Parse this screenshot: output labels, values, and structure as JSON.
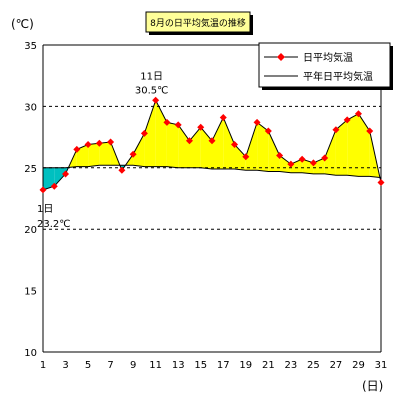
{
  "chart_data": {
    "type": "line",
    "title": "8月の日平均気温の推移",
    "xlabel": "(日)",
    "ylabel": "(℃)",
    "xlim": [
      1,
      31
    ],
    "ylim": [
      10,
      35
    ],
    "x_ticks": [
      1,
      3,
      5,
      7,
      9,
      11,
      13,
      15,
      17,
      19,
      21,
      23,
      25,
      27,
      29,
      31
    ],
    "y_ticks": [
      10,
      15,
      20,
      25,
      30,
      35
    ],
    "grid": "horizontal dashed at 20, 25, 30",
    "legend_position": "top-right",
    "x": [
      1,
      2,
      3,
      4,
      5,
      6,
      7,
      8,
      9,
      10,
      11,
      12,
      13,
      14,
      15,
      16,
      17,
      18,
      19,
      20,
      21,
      22,
      23,
      24,
      25,
      26,
      27,
      28,
      29,
      30,
      31
    ],
    "series": [
      {
        "name": "日平均気温",
        "color": "#ff0000",
        "line_color": "#000000",
        "marker": "diamond",
        "values": [
          23.2,
          23.5,
          24.5,
          26.5,
          26.9,
          27.0,
          27.1,
          24.8,
          26.1,
          27.8,
          30.5,
          28.7,
          28.5,
          27.2,
          28.3,
          27.2,
          29.1,
          26.9,
          25.9,
          28.7,
          28.0,
          26.0,
          25.3,
          25.7,
          25.4,
          25.8,
          28.1,
          28.9,
          29.4,
          28.0,
          23.8
        ]
      },
      {
        "name": "平年日平均気温",
        "color": "#000000",
        "values": [
          25.0,
          25.0,
          25.0,
          25.1,
          25.1,
          25.2,
          25.2,
          25.2,
          25.2,
          25.1,
          25.1,
          25.1,
          25.0,
          25.0,
          25.0,
          24.9,
          24.9,
          24.9,
          24.8,
          24.8,
          24.7,
          24.7,
          24.6,
          24.6,
          24.5,
          24.5,
          24.4,
          24.4,
          24.3,
          24.3,
          24.2
        ]
      }
    ],
    "fill_above_color": "#ffff00",
    "fill_below_color": "#00c0c0",
    "annotations": [
      {
        "x": 11,
        "y": 30.5,
        "day_label": "11日",
        "value_label": "30.5℃",
        "placement": "above"
      },
      {
        "x": 1,
        "y": 23.2,
        "day_label": "1日",
        "value_label": "23.2℃",
        "placement": "below"
      }
    ]
  }
}
